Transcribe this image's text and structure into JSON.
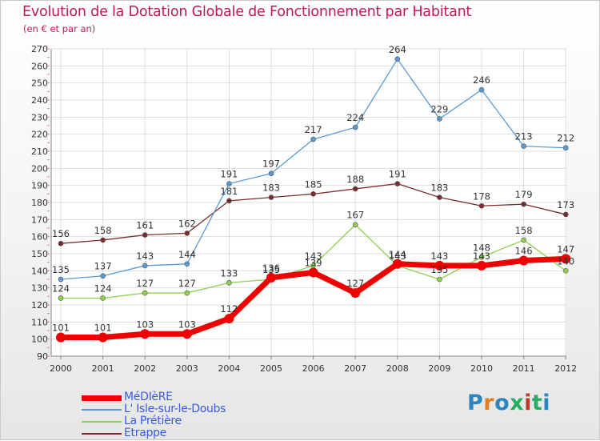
{
  "title": "Evolution de la Dotation Globale de Fonctionnement par Habitant",
  "subtitle": "(en € et par an)",
  "logo": {
    "text": "Proxiti",
    "colors": [
      "#2e86c1",
      "#e67e22",
      "#2e86c1",
      "#27ae60",
      "#c0392b",
      "#27ae60",
      "#2e86c1"
    ]
  },
  "chart_data": {
    "type": "line",
    "x": [
      "2000",
      "2001",
      "2002",
      "2003",
      "2004",
      "2005",
      "2006",
      "2007",
      "2008",
      "2009",
      "2010",
      "2011",
      "2012"
    ],
    "ylim": [
      90,
      270
    ],
    "yticks": [
      90,
      100,
      110,
      120,
      130,
      140,
      150,
      160,
      170,
      180,
      190,
      200,
      210,
      220,
      230,
      240,
      250,
      260,
      270
    ],
    "grid": true,
    "legend_position": "bottom-left",
    "series": [
      {
        "name": "MéDIèRE",
        "color": "#ee0000",
        "label_color": "#333333",
        "values": [
          101,
          101,
          103,
          103,
          112,
          136,
          139,
          127,
          144,
          143,
          143,
          146,
          147
        ]
      },
      {
        "name": "L' Isle-sur-le-Doubs",
        "color": "#5b9bd5",
        "label_color": "#333333",
        "values": [
          135,
          137,
          143,
          144,
          191,
          197,
          217,
          224,
          264,
          229,
          246,
          213,
          212
        ]
      },
      {
        "name": "La Prétière",
        "color": "#8fd14f",
        "label_color": "#333333",
        "values": [
          124,
          124,
          127,
          127,
          133,
          135,
          143,
          167,
          143,
          135,
          148,
          158,
          140
        ]
      },
      {
        "name": "Etrappe",
        "color": "#7b2c2c",
        "label_color": "#333333",
        "values": [
          156,
          158,
          161,
          162,
          181,
          183,
          185,
          188,
          191,
          183,
          178,
          179,
          173
        ]
      }
    ]
  }
}
